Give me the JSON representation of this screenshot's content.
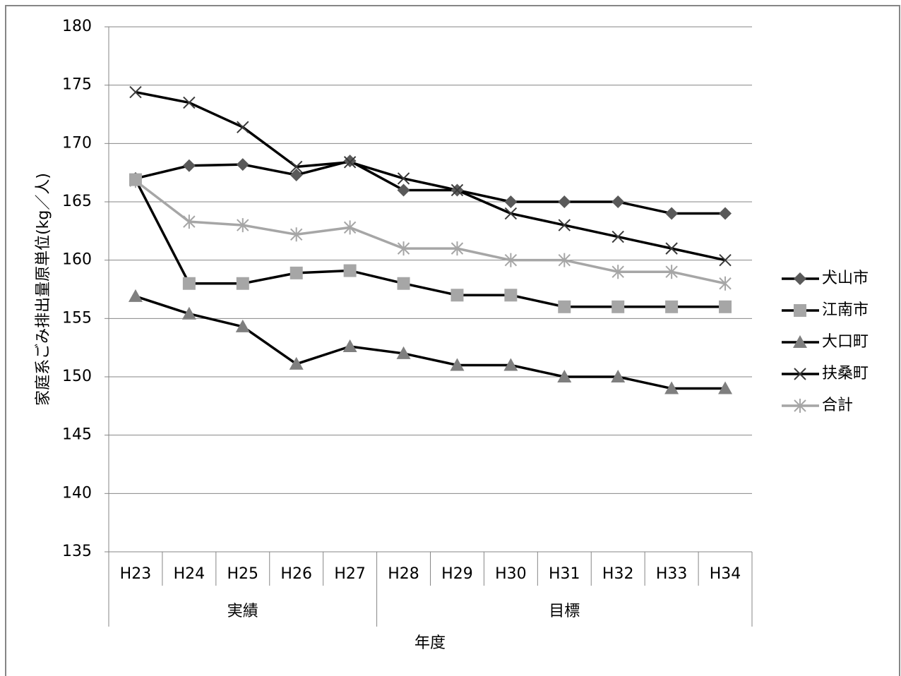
{
  "chart_data": {
    "type": "line",
    "y_axis_label": "家庭系ごみ排出量原単位(kg／人)",
    "x_axis_label": "年度",
    "categories": [
      "H23",
      "H24",
      "H25",
      "H26",
      "H27",
      "H28",
      "H29",
      "H30",
      "H31",
      "H32",
      "H33",
      "H34"
    ],
    "category_groups": [
      "実績",
      "実績",
      "実績",
      "実績",
      "実績",
      "目標",
      "目標",
      "目標",
      "目標",
      "目標",
      "目標",
      "目標"
    ],
    "series": [
      {
        "name": "犬山市",
        "color": "#000000",
        "marker": "diamond",
        "marker_color": "#595959",
        "values": [
          167.0,
          168.1,
          168.2,
          167.3,
          168.5,
          166,
          166,
          165,
          165,
          165,
          164,
          164
        ]
      },
      {
        "name": "江南市",
        "color": "#000000",
        "marker": "square",
        "marker_color": "#a6a6a6",
        "values": [
          166.9,
          158,
          158,
          158.9,
          159.1,
          158,
          157,
          157,
          156,
          156,
          156,
          156
        ]
      },
      {
        "name": "大口町",
        "color": "#000000",
        "marker": "triangle",
        "marker_color": "#7f7f7f",
        "values": [
          156.9,
          155.4,
          154.3,
          151.1,
          152.6,
          152,
          151,
          151,
          150,
          150,
          149,
          149
        ]
      },
      {
        "name": "扶桑町",
        "color": "#000000",
        "marker": "x",
        "marker_color": "#3a3a3a",
        "values": [
          174.4,
          173.5,
          171.4,
          168.0,
          168.4,
          167,
          166,
          164,
          163,
          162,
          161,
          160
        ]
      },
      {
        "name": "合計",
        "color": "#a6a6a6",
        "marker": "star",
        "marker_color": "#a6a6a6",
        "values": [
          166.8,
          163.3,
          163.0,
          162.2,
          162.8,
          161,
          161,
          160,
          160,
          159,
          159,
          158
        ]
      }
    ],
    "ylim": [
      135,
      180
    ],
    "yticks": [
      135,
      140,
      145,
      150,
      155,
      160,
      165,
      170,
      175,
      180
    ],
    "grid": true,
    "legend": "right"
  }
}
